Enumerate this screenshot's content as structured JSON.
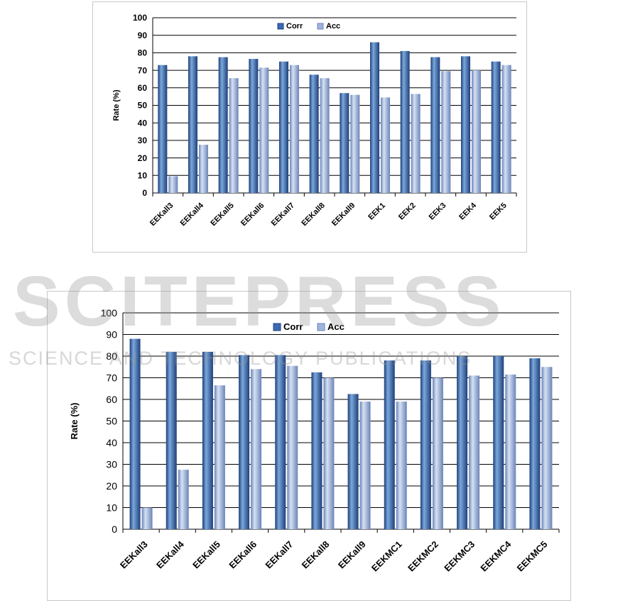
{
  "colors": {
    "corr_light": "#7aa8dc",
    "corr": "#3a6ab4",
    "corr_dark": "#1f3f7a",
    "acc_light": "#d6e2f3",
    "acc": "#9db4dd",
    "acc_dark": "#6b84b8",
    "grid": "#000000",
    "text": "#000000"
  },
  "watermark": {
    "title": "SCITEPRESS",
    "subtitle": "SCIENCE AND TECHNOLOGY PUBLICATIONS"
  },
  "chart_data": [
    {
      "type": "bar",
      "categories": [
        "EEKall3",
        "EEKall4",
        "EEKall5",
        "EEKall6",
        "EEKall7",
        "EEKall8",
        "EEKall9",
        "EEK1",
        "EEK2",
        "EEK3",
        "EEK4",
        "EEK5"
      ],
      "series": [
        {
          "name": "Corr",
          "values": [
            73,
            78,
            77.5,
            76.5,
            75,
            67.5,
            57,
            86,
            81,
            77.5,
            78,
            75
          ]
        },
        {
          "name": "Acc",
          "values": [
            9.5,
            27.5,
            65.5,
            71.5,
            73,
            65.5,
            56,
            54.5,
            56.5,
            69.5,
            70,
            73
          ]
        }
      ],
      "ylabel": "Rate (%)",
      "ylim": [
        0,
        100
      ],
      "yticks": [
        0,
        10,
        20,
        30,
        40,
        50,
        60,
        70,
        80,
        90,
        100
      ],
      "grid": true,
      "legend": "top-center"
    },
    {
      "type": "bar",
      "categories": [
        "EEKall3",
        "EEKall4",
        "EEKall5",
        "EEKall6",
        "EEKall7",
        "EEKall8",
        "EEKall9",
        "EEKMC1",
        "EEKMC2",
        "EEKMC3",
        "EEKMC4",
        "EEKMC5"
      ],
      "series": [
        {
          "name": "Corr",
          "values": [
            88,
            82,
            82,
            80.5,
            80.5,
            72.5,
            62.5,
            78,
            78,
            80,
            80,
            79
          ]
        },
        {
          "name": "Acc",
          "values": [
            10,
            27.5,
            66.5,
            74,
            75.5,
            70,
            59,
            59,
            70,
            71,
            71.5,
            75
          ]
        }
      ],
      "ylabel": "Rate (%)",
      "ylim": [
        0,
        100
      ],
      "yticks": [
        0,
        10,
        20,
        30,
        40,
        50,
        60,
        70,
        80,
        90,
        100
      ],
      "grid": true,
      "legend": "top-center"
    }
  ]
}
